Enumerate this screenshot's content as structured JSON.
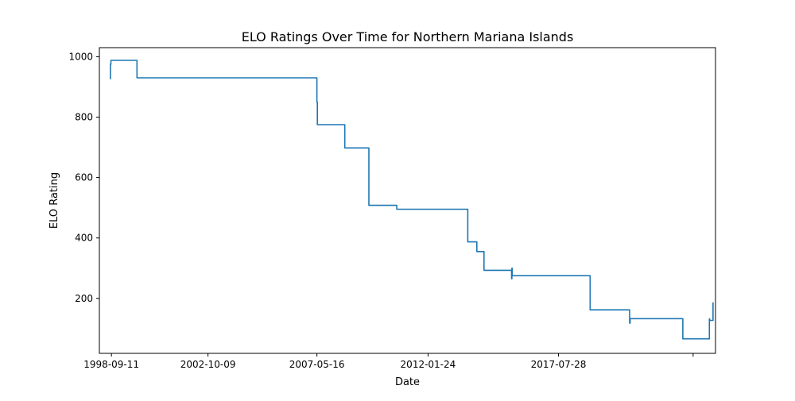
{
  "chart_data": {
    "type": "line",
    "title": "ELO Ratings Over Time for Northern Mariana Islands",
    "xlabel": "Date",
    "ylabel": "ELO Rating",
    "x_is_date": true,
    "xlim": [
      "1998-03-09",
      "2024-03-14"
    ],
    "ylim": [
      18,
      1030
    ],
    "x_ticks": [
      "1998-09-11",
      "2002-10-09",
      "2007-05-16",
      "2012-01-24",
      "2017-07-28",
      "2023-04-04"
    ],
    "x_tick_labels": [
      "1998-09-11",
      "2002-10-09",
      "2007-05-16",
      "2012-01-24",
      "2017-07-28",
      ""
    ],
    "y_ticks": [
      200,
      400,
      600,
      800,
      1000
    ],
    "y_tick_labels": [
      "200",
      "400",
      "600",
      "800",
      "1000"
    ],
    "grid": false,
    "legend": false,
    "series": [
      {
        "color": "#1f77b4",
        "step": true,
        "x": [
          "1998-08-20",
          "1998-08-27",
          "1998-09-03",
          "1999-10-10",
          "2007-05-16",
          "2007-05-23",
          "2008-07-19",
          "2009-07-25",
          "2009-08-02",
          "2010-09-29",
          "2013-09-28",
          "2014-02-14",
          "2014-06-05",
          "2015-08-04",
          "2015-08-09",
          "2015-08-14",
          "2018-11-27",
          "2020-07-29",
          "2020-08-05",
          "2022-10-27",
          "2023-12-10",
          "2023-12-14",
          "2024-02-05"
        ],
        "y": [
          927,
          975,
          988,
          930,
          850,
          775,
          698,
          508,
          508,
          495,
          387,
          355,
          293,
          265,
          300,
          275,
          162,
          118,
          133,
          66,
          132,
          127,
          187
        ]
      }
    ]
  }
}
